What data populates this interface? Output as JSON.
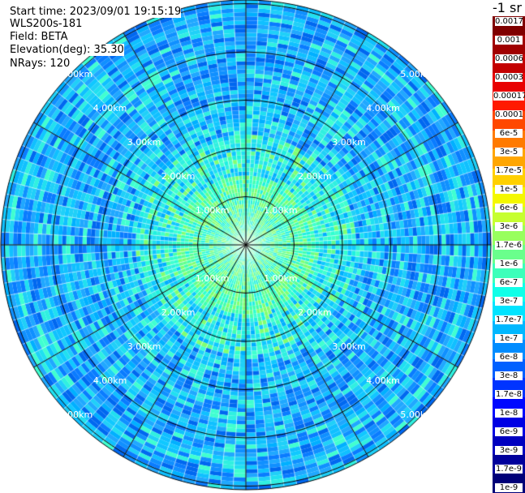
{
  "info": {
    "start_time": "Start time: 2023/09/01 19:15:19",
    "device": "WLS200s-181",
    "field": "Field: BETA",
    "elevation": "Elevation(deg): 35.30",
    "nrays": "NRays: 120"
  },
  "colorbar": {
    "unit": "-1 sr",
    "labels": [
      "0.0017",
      "0.001",
      "0.0006",
      "0.0003",
      "0.00017",
      "0.0001",
      "6e-5",
      "3e-5",
      "1.7e-5",
      "1e-5",
      "6e-6",
      "3e-6",
      "1.7e-6",
      "1e-6",
      "6e-7",
      "3e-7",
      "1.7e-7",
      "1e-7",
      "6e-8",
      "3e-8",
      "1.7e-8",
      "1e-8",
      "6e-9",
      "3e-9",
      "1.7e-9",
      "1e-9"
    ],
    "colors": [
      "#7f0000",
      "#a00000",
      "#c40000",
      "#e80000",
      "#ff1a00",
      "#ff4800",
      "#ff7a00",
      "#ffa600",
      "#ffd000",
      "#f4f800",
      "#c6ff30",
      "#98ff5e",
      "#6aff8c",
      "#3cffba",
      "#10ffe8",
      "#00e4ff",
      "#00b8ff",
      "#008cff",
      "#0060ff",
      "#0034ff",
      "#0008ff",
      "#0000e4",
      "#0000c0",
      "#00009c",
      "#000078"
    ]
  },
  "range_labels": {
    "r1": "1.00km",
    "r2": "2.00km",
    "r3": "3.00km",
    "r4": "4.00km",
    "r5": "5.00km"
  },
  "plot_colors": {
    "near": "#40ffb0",
    "mid": "#20e0f0",
    "far": "#1090ff",
    "grid": "#000000"
  }
}
